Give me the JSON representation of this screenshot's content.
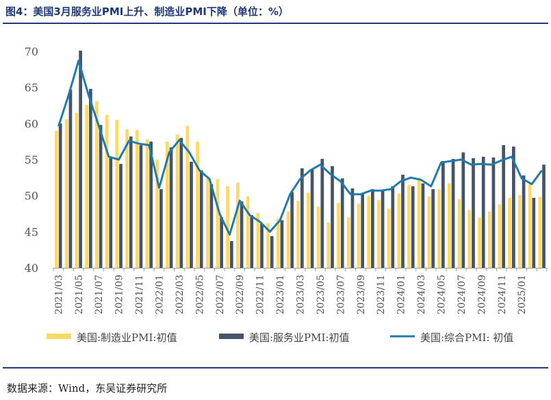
{
  "title": "图4：美国3月服务业PMI上升、制造业PMI下降（单位：%）",
  "source": "数据来源：Wind，东吴证券研究所",
  "colors": {
    "title": "#1f3a78",
    "manufacturing": "#ffd966",
    "services": "#44546a",
    "composite": "#1f7bab"
  },
  "chart_data": {
    "type": "bar",
    "x": [
      "2021/03",
      "2021/04",
      "2021/05",
      "2021/06",
      "2021/07",
      "2021/08",
      "2021/09",
      "2021/10",
      "2021/11",
      "2021/12",
      "2022/01",
      "2022/02",
      "2022/03",
      "2022/04",
      "2022/05",
      "2022/06",
      "2022/07",
      "2022/08",
      "2022/09",
      "2022/10",
      "2022/11",
      "2022/12",
      "2023/01",
      "2023/02",
      "2023/03",
      "2023/04",
      "2023/05",
      "2023/06",
      "2023/07",
      "2023/08",
      "2023/09",
      "2023/10",
      "2023/11",
      "2023/12",
      "2024/01",
      "2024/02",
      "2024/03",
      "2024/04",
      "2024/05",
      "2024/06",
      "2024/07",
      "2024/08",
      "2024/09",
      "2024/10",
      "2024/11",
      "2024/12",
      "2025/01",
      "2025/02",
      "2025/03"
    ],
    "x_tick_labels": [
      "2021/03",
      "2021/05",
      "2021/07",
      "2021/09",
      "2021/11",
      "2022/01",
      "2022/03",
      "2022/05",
      "2022/07",
      "2022/09",
      "2022/11",
      "2023/01",
      "2023/03",
      "2023/05",
      "2023/07",
      "2023/09",
      "2023/11",
      "2024/01",
      "2024/03",
      "2024/05",
      "2024/07",
      "2024/09",
      "2024/11",
      "2025/01"
    ],
    "ylim": [
      40,
      70
    ],
    "yticks": [
      40,
      45,
      50,
      55,
      60,
      65,
      70
    ],
    "series": [
      {
        "name": "美国:制造业PMI:初值",
        "type": "bar",
        "values": [
          59.0,
          60.6,
          61.5,
          62.6,
          63.1,
          61.2,
          60.5,
          59.2,
          59.1,
          57.8,
          55.0,
          57.5,
          58.5,
          59.7,
          57.5,
          52.4,
          52.3,
          51.3,
          51.8,
          49.9,
          47.6,
          46.2,
          46.8,
          47.8,
          49.3,
          50.4,
          48.5,
          46.3,
          49.0,
          47.0,
          48.9,
          50.0,
          49.4,
          48.2,
          50.3,
          51.5,
          52.5,
          49.9,
          50.9,
          51.7,
          49.5,
          48.0,
          47.0,
          47.8,
          48.8,
          49.7,
          50.1,
          51.6,
          49.8
        ]
      },
      {
        "name": "美国:服务业PMI:初值",
        "type": "bar",
        "values": [
          60.0,
          64.7,
          70.1,
          64.8,
          59.8,
          55.2,
          54.4,
          58.2,
          57.0,
          57.5,
          50.9,
          56.7,
          58.0,
          54.7,
          53.5,
          51.6,
          47.0,
          43.7,
          49.2,
          47.3,
          46.1,
          44.4,
          46.6,
          50.5,
          53.8,
          53.7,
          55.1,
          54.1,
          52.4,
          51.0,
          50.2,
          50.9,
          50.8,
          51.3,
          52.9,
          51.3,
          51.7,
          50.9,
          54.8,
          55.1,
          56.0,
          55.2,
          55.4,
          55.3,
          57.0,
          56.8,
          52.8,
          49.7,
          54.3
        ]
      },
      {
        "name": "美国:综合PMI:  初值",
        "type": "line",
        "values": [
          59.6,
          63.9,
          68.7,
          63.9,
          59.7,
          55.4,
          55.0,
          57.6,
          57.2,
          57.0,
          51.1,
          56.0,
          57.7,
          56.0,
          53.5,
          52.3,
          47.5,
          44.6,
          49.3,
          47.3,
          46.4,
          45.0,
          46.6,
          50.2,
          52.3,
          53.5,
          54.3,
          53.0,
          52.0,
          50.2,
          50.2,
          50.7,
          50.7,
          50.9,
          52.0,
          52.5,
          52.2,
          51.3,
          54.6,
          54.8,
          55.0,
          54.3,
          54.4,
          54.3,
          54.9,
          55.4,
          52.4,
          51.6,
          53.5
        ]
      }
    ],
    "legend": [
      "美国:制造业PMI:初值",
      "美国:服务业PMI:初值",
      "美国:综合PMI:  初值"
    ],
    "legend_position": "bottom",
    "grid": false
  }
}
